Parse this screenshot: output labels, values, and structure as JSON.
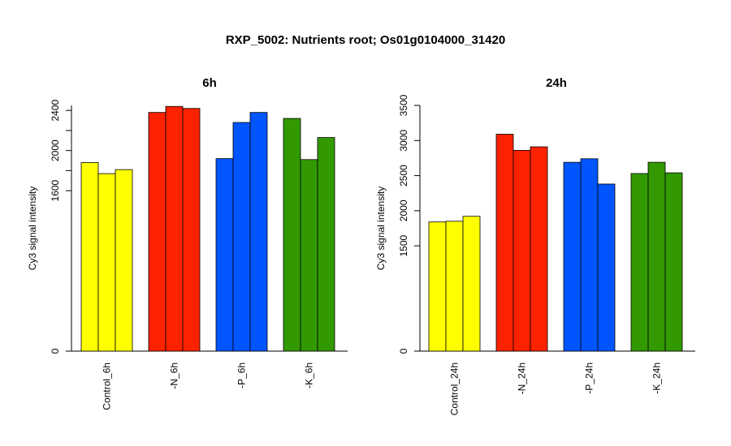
{
  "title": "RXP_5002: Nutrients root; Os01g0104000_31420",
  "chart_data": [
    {
      "type": "bar",
      "title": "6h",
      "ylabel": "Cy3 signal intensity",
      "xlabel": "",
      "ylim": [
        0,
        2450
      ],
      "yticks": [
        0,
        1600,
        2000,
        2400
      ],
      "categories": [
        "Control_6h",
        "-N_6h",
        "-P_6h",
        "-K_6h"
      ],
      "colors": [
        "#ffff00",
        "#ff2200",
        "#0055ff",
        "#339900"
      ],
      "replicates": [
        [
          1880,
          1770,
          1810
        ],
        [
          2380,
          2440,
          2420
        ],
        [
          1920,
          2280,
          2380
        ],
        [
          2320,
          1910,
          2130
        ]
      ]
    },
    {
      "type": "bar",
      "title": "24h",
      "ylabel": "Cy3 signal intensity",
      "xlabel": "",
      "ylim": [
        0,
        3500
      ],
      "yticks": [
        0,
        1500,
        2000,
        2500,
        3000,
        3500
      ],
      "categories": [
        "Control_24h",
        "-N_24h",
        "-P_24h",
        "-K_24h"
      ],
      "colors": [
        "#ffff00",
        "#ff2200",
        "#0055ff",
        "#339900"
      ],
      "replicates": [
        [
          1840,
          1850,
          1920
        ],
        [
          3090,
          2860,
          2910
        ],
        [
          2690,
          2740,
          2380
        ],
        [
          2530,
          2690,
          2540
        ]
      ]
    }
  ]
}
